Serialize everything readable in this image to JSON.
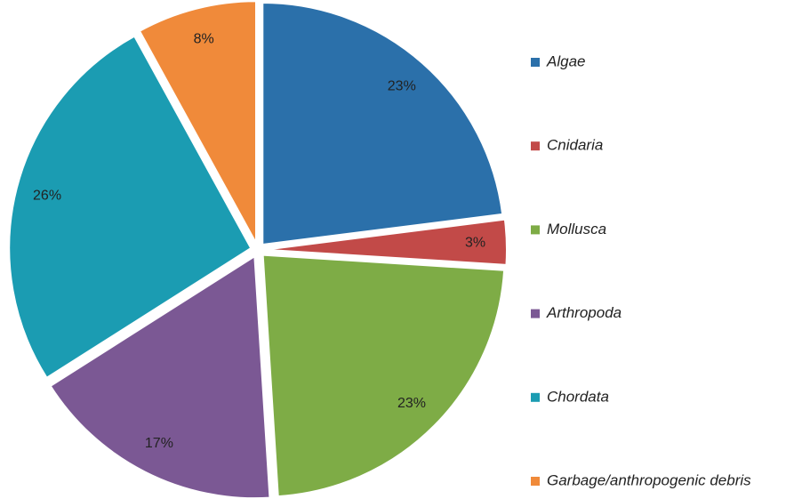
{
  "chart_data": {
    "type": "pie",
    "categories": [
      "Algae",
      "Cnidaria",
      "Mollusca",
      "Arthropoda",
      "Chordata",
      "Garbage/anthropogenic debris"
    ],
    "values": [
      23,
      3,
      23,
      17,
      26,
      8
    ],
    "value_labels": [
      "23%",
      "3%",
      "23%",
      "17%",
      "26%",
      "8%"
    ],
    "colors": [
      "#2b70aa",
      "#c24a48",
      "#7eac46",
      "#7b5894",
      "#1b9cb2",
      "#f08a3a"
    ],
    "legend": "right"
  }
}
